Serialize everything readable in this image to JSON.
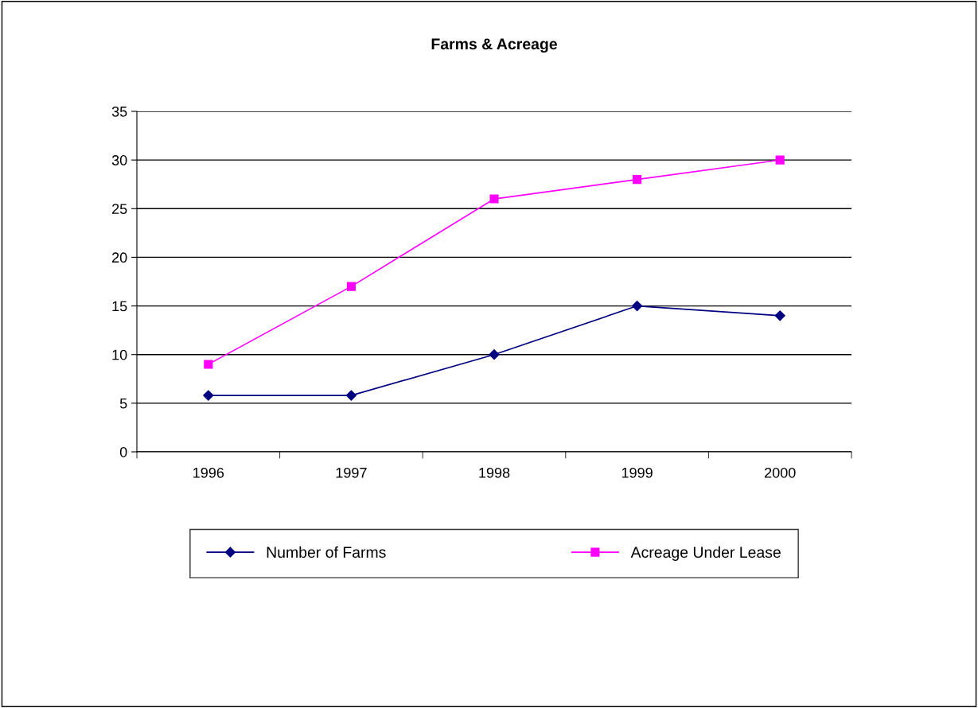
{
  "chart_data": {
    "type": "line",
    "title": "Farms & Acreage",
    "categories": [
      "1996",
      "1997",
      "1998",
      "1999",
      "2000"
    ],
    "series": [
      {
        "name": "Number of Farms",
        "color": "#000080",
        "marker": "diamond",
        "values": [
          5.8,
          5.8,
          10,
          15,
          14
        ]
      },
      {
        "name": "Acreage Under Lease",
        "color": "#ff00ff",
        "marker": "square",
        "values": [
          9,
          17,
          26,
          28,
          30
        ]
      }
    ],
    "ylim": [
      0,
      35
    ],
    "yticks": [
      0,
      5,
      10,
      15,
      20,
      25,
      30,
      35
    ],
    "grid": "y",
    "legend": "bottom"
  }
}
